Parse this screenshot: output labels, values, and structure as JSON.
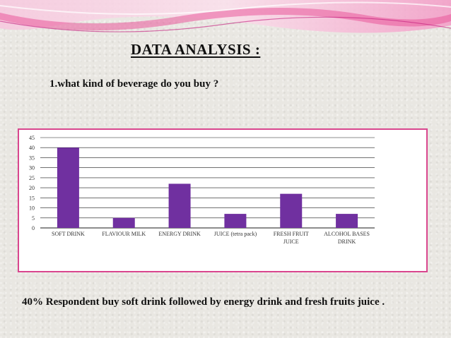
{
  "slide": {
    "title": "DATA  ANALYSIS :",
    "question": "1.what kind of beverage do you buy ?",
    "conclusion": "40% Respondent buy soft drink followed by energy drink and fresh fruits juice ."
  },
  "colors": {
    "bar": "#7030a0",
    "frame": "#d9468e",
    "grid": "#1a1a1a"
  },
  "chart_data": {
    "type": "bar",
    "title": "",
    "xlabel": "",
    "ylabel": "",
    "categories": [
      [
        "SOFT DRINK"
      ],
      [
        "FLAVIOUR MILK"
      ],
      [
        "ENERGY DRINK"
      ],
      [
        "JUICE (tetra pack)"
      ],
      [
        "FRESH FRUIT",
        "JUICE"
      ],
      [
        "ALCOHOL BASES",
        "DRINK"
      ]
    ],
    "values": [
      40,
      5,
      22,
      7,
      17,
      7
    ],
    "ylim": [
      0,
      45
    ],
    "yticks": [
      0,
      5,
      10,
      15,
      20,
      25,
      30,
      35,
      40,
      45
    ],
    "grid": true,
    "legend": "none"
  }
}
